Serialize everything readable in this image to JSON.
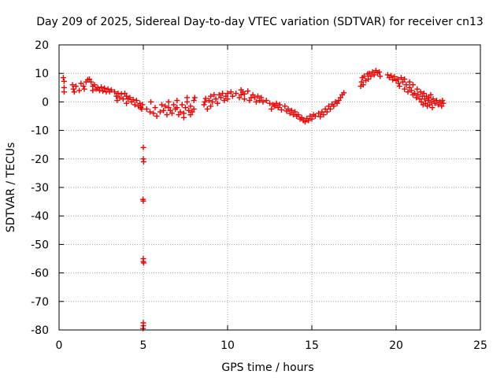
{
  "chart_data": {
    "type": "scatter",
    "title": "Day 209 of 2025, Sidereal Day-to-day VTEC variation (SDTVAR) for receiver cn13",
    "xlabel": "GPS time / hours",
    "ylabel": "SDTVAR / TECUs",
    "xlim": [
      0,
      25
    ],
    "ylim": [
      -80,
      20
    ],
    "xticks": [
      0,
      5,
      10,
      15,
      20,
      25
    ],
    "yticks": [
      20,
      10,
      0,
      -10,
      -20,
      -30,
      -40,
      -50,
      -60,
      -70,
      -80
    ],
    "grid": true,
    "marker": "+",
    "color": "#ee0000",
    "series": [
      {
        "name": "SDTVAR",
        "points": [
          [
            0.25,
            8.5
          ],
          [
            0.3,
            7.2
          ],
          [
            0.3,
            5.0
          ],
          [
            0.3,
            3.5
          ],
          [
            0.8,
            6.0
          ],
          [
            0.85,
            4.5
          ],
          [
            0.9,
            3.5
          ],
          [
            1.0,
            5.5
          ],
          [
            1.2,
            4.0
          ],
          [
            1.3,
            6.5
          ],
          [
            1.45,
            5.5
          ],
          [
            1.5,
            4.5
          ],
          [
            1.6,
            7.0
          ],
          [
            1.7,
            7.8
          ],
          [
            1.8,
            8.0
          ],
          [
            1.9,
            7.0
          ],
          [
            2.0,
            5.5
          ],
          [
            2.0,
            4.0
          ],
          [
            2.1,
            6.0
          ],
          [
            2.2,
            4.5
          ],
          [
            2.3,
            5.0
          ],
          [
            2.4,
            4.0
          ],
          [
            2.5,
            5.2
          ],
          [
            2.6,
            3.8
          ],
          [
            2.7,
            4.8
          ],
          [
            2.8,
            3.5
          ],
          [
            2.9,
            4.5
          ],
          [
            3.0,
            3.6
          ],
          [
            3.1,
            4.2
          ],
          [
            3.3,
            3.5
          ],
          [
            3.4,
            2.0
          ],
          [
            3.45,
            0.5
          ],
          [
            3.5,
            3.0
          ],
          [
            3.6,
            1.5
          ],
          [
            3.7,
            2.8
          ],
          [
            3.8,
            1.0
          ],
          [
            3.9,
            3.0
          ],
          [
            4.0,
            2.0
          ],
          [
            4.0,
            -0.5
          ],
          [
            4.1,
            1.0
          ],
          [
            4.2,
            1.5
          ],
          [
            4.3,
            0.0
          ],
          [
            4.4,
            0.8
          ],
          [
            4.5,
            -1.0
          ],
          [
            4.6,
            0.5
          ],
          [
            4.7,
            -1.5
          ],
          [
            4.8,
            -0.5
          ],
          [
            4.85,
            -2.0
          ],
          [
            4.9,
            -2.5
          ],
          [
            4.95,
            -1.0
          ],
          [
            5.0,
            -16.0
          ],
          [
            5.0,
            -20.0
          ],
          [
            5.02,
            -21.0
          ],
          [
            4.98,
            -34.2
          ],
          [
            5.0,
            -34.8
          ],
          [
            5.0,
            -55.0
          ],
          [
            5.0,
            -56.0
          ],
          [
            5.02,
            -56.5
          ],
          [
            5.0,
            -77.5
          ],
          [
            5.0,
            -78.5
          ],
          [
            4.98,
            -79.5
          ],
          [
            5.2,
            -2.5
          ],
          [
            5.4,
            -3.5
          ],
          [
            5.45,
            0.0
          ],
          [
            5.6,
            -4.0
          ],
          [
            5.7,
            -2.0
          ],
          [
            5.8,
            -5.0
          ],
          [
            6.0,
            -3.5
          ],
          [
            6.1,
            -1.0
          ],
          [
            6.2,
            -3.0
          ],
          [
            6.3,
            -1.5
          ],
          [
            6.4,
            -4.5
          ],
          [
            6.5,
            -2.0
          ],
          [
            6.5,
            0.0
          ],
          [
            6.6,
            -3.0
          ],
          [
            6.7,
            -4.0
          ],
          [
            6.8,
            -1.0
          ],
          [
            6.9,
            -2.5
          ],
          [
            7.0,
            0.5
          ],
          [
            7.0,
            -2.0
          ],
          [
            7.1,
            -4.5
          ],
          [
            7.2,
            -3.5
          ],
          [
            7.3,
            -1.0
          ],
          [
            7.4,
            -4.0
          ],
          [
            7.4,
            -5.5
          ],
          [
            7.5,
            -2.0
          ],
          [
            7.6,
            0.0
          ],
          [
            7.6,
            1.5
          ],
          [
            7.7,
            -3.0
          ],
          [
            7.8,
            -4.5
          ],
          [
            7.8,
            -1.5
          ],
          [
            7.9,
            -3.5
          ],
          [
            8.0,
            -2.5
          ],
          [
            8.0,
            0.5
          ],
          [
            8.05,
            1.5
          ],
          [
            8.6,
            -1.0
          ],
          [
            8.65,
            0.0
          ],
          [
            8.7,
            1.2
          ],
          [
            8.8,
            -2.5
          ],
          [
            8.9,
            0.5
          ],
          [
            9.0,
            2.0
          ],
          [
            9.0,
            -1.5
          ],
          [
            9.1,
            0.0
          ],
          [
            9.2,
            2.5
          ],
          [
            9.3,
            1.0
          ],
          [
            9.4,
            -0.5
          ],
          [
            9.5,
            2.5
          ],
          [
            9.6,
            1.5
          ],
          [
            9.7,
            3.0
          ],
          [
            9.8,
            0.5
          ],
          [
            9.9,
            2.0
          ],
          [
            10.0,
            3.0
          ],
          [
            10.0,
            1.0
          ],
          [
            10.2,
            3.5
          ],
          [
            10.3,
            2.0
          ],
          [
            10.5,
            3.0
          ],
          [
            10.7,
            1.5
          ],
          [
            10.8,
            2.5
          ],
          [
            10.8,
            4.2
          ],
          [
            10.9,
            3.5
          ],
          [
            11.0,
            1.0
          ],
          [
            11.0,
            2.8
          ],
          [
            11.2,
            3.8
          ],
          [
            11.3,
            0.5
          ],
          [
            11.4,
            1.5
          ],
          [
            11.5,
            2.5
          ],
          [
            11.6,
            1.5
          ],
          [
            11.7,
            0.0
          ],
          [
            11.8,
            2.0
          ],
          [
            11.9,
            0.5
          ],
          [
            12.0,
            1.5
          ],
          [
            12.1,
            0.0
          ],
          [
            12.3,
            0.5
          ],
          [
            12.5,
            -0.5
          ],
          [
            12.6,
            -2.5
          ],
          [
            12.7,
            -1.0
          ],
          [
            12.8,
            -1.5
          ],
          [
            12.9,
            -0.5
          ],
          [
            13.0,
            -2.0
          ],
          [
            13.1,
            -1.0
          ],
          [
            13.2,
            -2.8
          ],
          [
            13.4,
            -1.5
          ],
          [
            13.5,
            -3.2
          ],
          [
            13.6,
            -2.5
          ],
          [
            13.7,
            -4.0
          ],
          [
            13.8,
            -3.0
          ],
          [
            13.9,
            -4.5
          ],
          [
            14.0,
            -3.5
          ],
          [
            14.1,
            -5.0
          ],
          [
            14.2,
            -4.5
          ],
          [
            14.3,
            -6.0
          ],
          [
            14.4,
            -5.5
          ],
          [
            14.5,
            -6.5
          ],
          [
            14.6,
            -7.0
          ],
          [
            14.7,
            -5.8
          ],
          [
            14.8,
            -6.5
          ],
          [
            14.9,
            -5.0
          ],
          [
            15.0,
            -6.0
          ],
          [
            15.1,
            -4.5
          ],
          [
            15.2,
            -5.0
          ],
          [
            15.4,
            -4.0
          ],
          [
            15.5,
            -5.2
          ],
          [
            15.6,
            -3.5
          ],
          [
            15.7,
            -4.5
          ],
          [
            15.8,
            -2.5
          ],
          [
            15.9,
            -3.5
          ],
          [
            16.0,
            -1.5
          ],
          [
            16.1,
            -2.5
          ],
          [
            16.2,
            -0.8
          ],
          [
            16.3,
            -1.5
          ],
          [
            16.4,
            0.0
          ],
          [
            16.5,
            -0.5
          ],
          [
            16.6,
            0.5
          ],
          [
            16.7,
            1.5
          ],
          [
            16.8,
            2.5
          ],
          [
            16.9,
            3.2
          ],
          [
            17.9,
            5.5
          ],
          [
            17.95,
            7.0
          ],
          [
            18.0,
            8.5
          ],
          [
            18.05,
            6.0
          ],
          [
            18.1,
            9.0
          ],
          [
            18.2,
            7.5
          ],
          [
            18.3,
            9.8
          ],
          [
            18.35,
            8.0
          ],
          [
            18.4,
            10.0
          ],
          [
            18.5,
            9.0
          ],
          [
            18.6,
            10.5
          ],
          [
            18.7,
            9.5
          ],
          [
            18.8,
            11.0
          ],
          [
            18.9,
            10.2
          ],
          [
            19.0,
            10.5
          ],
          [
            19.05,
            9.0
          ],
          [
            19.5,
            9.5
          ],
          [
            19.6,
            8.5
          ],
          [
            19.7,
            9.2
          ],
          [
            19.8,
            7.8
          ],
          [
            19.9,
            8.8
          ],
          [
            20.0,
            7.5
          ],
          [
            20.1,
            8.0
          ],
          [
            20.15,
            6.5
          ],
          [
            20.2,
            5.5
          ],
          [
            20.3,
            8.5
          ],
          [
            20.4,
            7.0
          ],
          [
            20.5,
            4.5
          ],
          [
            20.5,
            8.0
          ],
          [
            20.6,
            6.0
          ],
          [
            20.7,
            3.5
          ],
          [
            20.8,
            7.0
          ],
          [
            20.8,
            5.0
          ],
          [
            20.9,
            4.0
          ],
          [
            21.0,
            6.0
          ],
          [
            21.0,
            2.5
          ],
          [
            21.1,
            3.0
          ],
          [
            21.2,
            1.5
          ],
          [
            21.25,
            4.5
          ],
          [
            21.3,
            2.5
          ],
          [
            21.4,
            1.0
          ],
          [
            21.45,
            3.5
          ],
          [
            21.5,
            0.0
          ],
          [
            21.55,
            2.0
          ],
          [
            21.6,
            -1.0
          ],
          [
            21.65,
            3.0
          ],
          [
            21.7,
            1.0
          ],
          [
            21.75,
            -0.5
          ],
          [
            21.8,
            2.0
          ],
          [
            21.85,
            -1.5
          ],
          [
            21.9,
            0.5
          ],
          [
            21.95,
            1.5
          ],
          [
            22.0,
            -1.0
          ],
          [
            22.05,
            2.5
          ],
          [
            22.1,
            0.0
          ],
          [
            22.15,
            -2.0
          ],
          [
            22.2,
            1.0
          ],
          [
            22.3,
            -0.5
          ],
          [
            22.4,
            0.5
          ],
          [
            22.5,
            -1.0
          ],
          [
            22.6,
            0.0
          ],
          [
            22.7,
            -1.5
          ],
          [
            22.75,
            0.5
          ],
          [
            22.8,
            -0.5
          ]
        ]
      }
    ]
  }
}
